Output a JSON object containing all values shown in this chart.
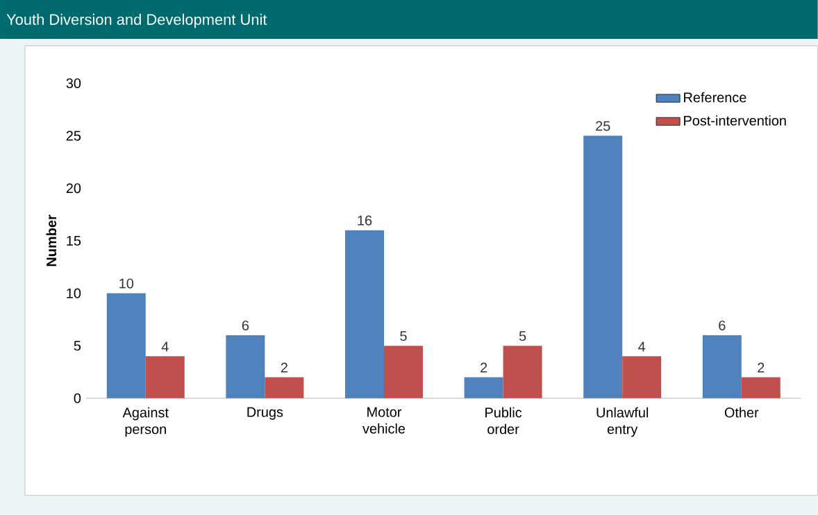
{
  "chart_data": {
    "type": "bar",
    "title": "Youth Diversion and Development Unit",
    "categories": [
      "Against person",
      "Drugs",
      "Motor vehicle",
      "Public order",
      "Unlawful entry",
      "Other"
    ],
    "series": [
      {
        "name": "Reference",
        "color": "#4f81bd",
        "values": [
          10,
          6,
          16,
          2,
          25,
          6
        ]
      },
      {
        "name": "Post-intervention",
        "color": "#c0504d",
        "values": [
          4,
          2,
          5,
          5,
          4,
          2
        ]
      }
    ],
    "ylabel": "Number",
    "ylim": [
      0,
      30
    ],
    "yticks": [
      0,
      5,
      10,
      15,
      20,
      25,
      30
    ],
    "data_labels": true,
    "legend": "top right",
    "grid": false
  }
}
